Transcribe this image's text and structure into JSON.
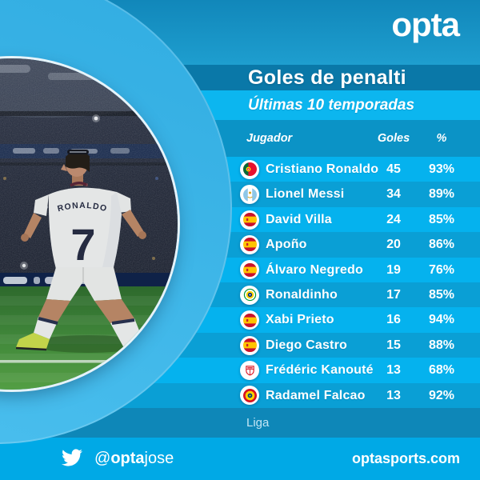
{
  "brand": {
    "logo_text": "opta"
  },
  "header": {
    "title": "Goles de penalti",
    "subtitle": "Últimas 10 temporadas"
  },
  "table": {
    "columns": {
      "player": "Jugador",
      "goals": "Goles",
      "pct": "%"
    },
    "rows": [
      {
        "player": "Cristiano Ronaldo",
        "goals": "45",
        "pct": "93%",
        "flag": "portugal"
      },
      {
        "player": "Lionel Messi",
        "goals": "34",
        "pct": "89%",
        "flag": "argentina"
      },
      {
        "player": "David Villa",
        "goals": "24",
        "pct": "85%",
        "flag": "spain"
      },
      {
        "player": "Apoño",
        "goals": "20",
        "pct": "86%",
        "flag": "spain"
      },
      {
        "player": "Álvaro Negredo",
        "goals": "19",
        "pct": "76%",
        "flag": "spain"
      },
      {
        "player": "Ronaldinho",
        "goals": "17",
        "pct": "85%",
        "flag": "brazil"
      },
      {
        "player": "Xabi Prieto",
        "goals": "16",
        "pct": "94%",
        "flag": "spain"
      },
      {
        "player": "Diego Castro",
        "goals": "15",
        "pct": "88%",
        "flag": "spain"
      },
      {
        "player": "Frédéric Kanouté",
        "goals": "13",
        "pct": "68%",
        "flag": "sevilla"
      },
      {
        "player": "Radamel Falcao",
        "goals": "13",
        "pct": "92%",
        "flag": "colombia"
      }
    ],
    "footnote": "Liga"
  },
  "photo": {
    "jersey_name": "RONALDO",
    "jersey_number": "7"
  },
  "footer": {
    "twitter_at": "@",
    "twitter_bold": "opta",
    "twitter_rest": "jose",
    "site": "optasports.com"
  },
  "colors": {
    "top_1": "#1187ba",
    "top_2": "#1e9ecf",
    "title_band": "#0a78a8",
    "subtitle_band": "#0cb6ef",
    "header_band": "#0b93c6",
    "row_light": "#05b2ee",
    "row_dark": "#0a9fd5",
    "liga_band": "#0e87b8",
    "footer_band": "#00a9e6",
    "ring_1": "#30ace1",
    "ring_2": "#4cc0ef"
  },
  "chart_data": {
    "type": "table",
    "title": "Goles de penalti",
    "subtitle": "Últimas 10 temporadas",
    "columns": [
      "Jugador",
      "Goles",
      "%"
    ],
    "rows": [
      [
        "Cristiano Ronaldo",
        45,
        "93%"
      ],
      [
        "Lionel Messi",
        34,
        "89%"
      ],
      [
        "David Villa",
        24,
        "85%"
      ],
      [
        "Apoño",
        20,
        "86%"
      ],
      [
        "Álvaro Negredo",
        19,
        "76%"
      ],
      [
        "Ronaldinho",
        17,
        "85%"
      ],
      [
        "Xabi Prieto",
        16,
        "94%"
      ],
      [
        "Diego Castro",
        15,
        "88%"
      ],
      [
        "Frédéric Kanouté",
        13,
        "68%"
      ],
      [
        "Radamel Falcao",
        13,
        "92%"
      ]
    ],
    "footnote": "Liga"
  }
}
